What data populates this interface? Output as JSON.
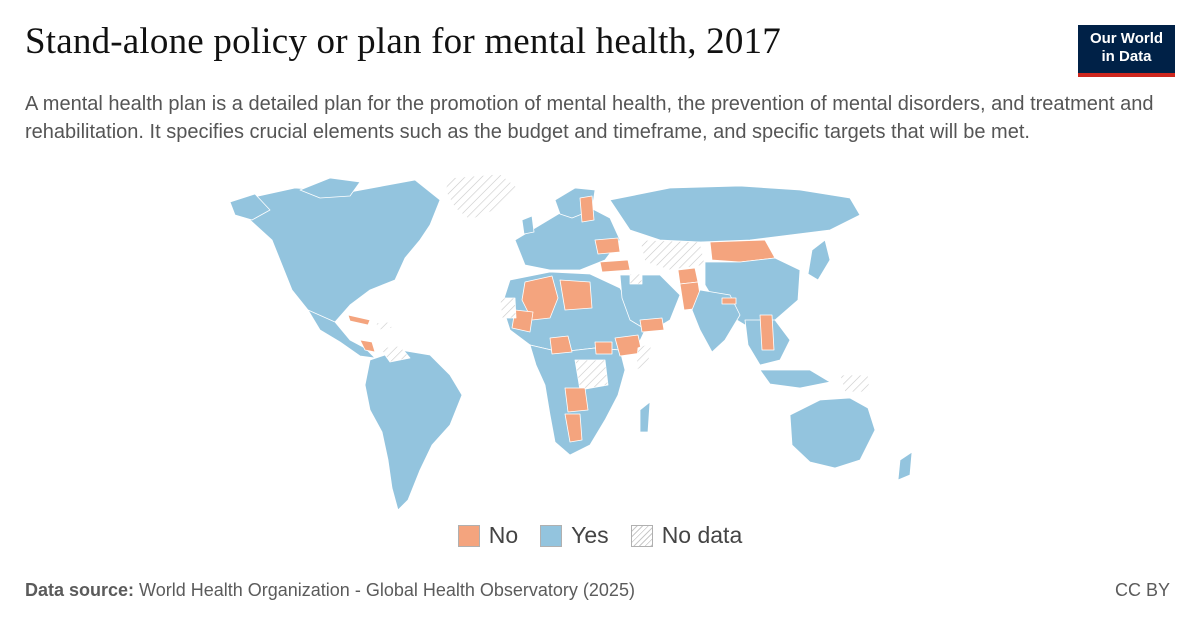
{
  "header": {
    "title": "Stand-alone policy or plan for mental health, 2017",
    "subtitle": "A mental health plan is a detailed plan for the promotion of mental health, the prevention of mental disorders, and treatment and rehabilitation. It specifies crucial elements such as the budget and timeframe, and specific targets that will be met."
  },
  "logo": {
    "line1": "Our World",
    "line2": "in Data"
  },
  "colors": {
    "no": "#f4a47e",
    "yes": "#93c4de",
    "nodata": "#ffffff",
    "border": "#7aa0b8"
  },
  "map": {
    "year": "2017",
    "categories": [
      "No",
      "Yes",
      "No data"
    ],
    "regions_no": [
      "Algeria",
      "Libya",
      "Niger",
      "Mali",
      "Western Sahara",
      "Nigeria",
      "South Sudan",
      "Ethiopia",
      "Yemen",
      "Angola",
      "Namibia",
      "Cuba",
      "Honduras",
      "Nicaragua",
      "Finland",
      "Ukraine",
      "Turkey",
      "Mongolia",
      "Pakistan",
      "Afghanistan",
      "Tajikistan",
      "Vietnam",
      "Nepal",
      "Lesotho"
    ],
    "regions_no_data": [
      "Greenland",
      "Kazakhstan",
      "Somalia",
      "Democratic Republic of the Congo",
      "Venezuela",
      "Haiti",
      "Papua New Guinea",
      "Mauritania",
      "Syria",
      "Serbia"
    ]
  },
  "legend": {
    "items": [
      {
        "label": "No"
      },
      {
        "label": "Yes"
      },
      {
        "label": "No data"
      }
    ]
  },
  "footer": {
    "source_label": "Data source:",
    "source_text": " World Health Organization - Global Health Observatory (2025)",
    "license": "CC BY"
  }
}
